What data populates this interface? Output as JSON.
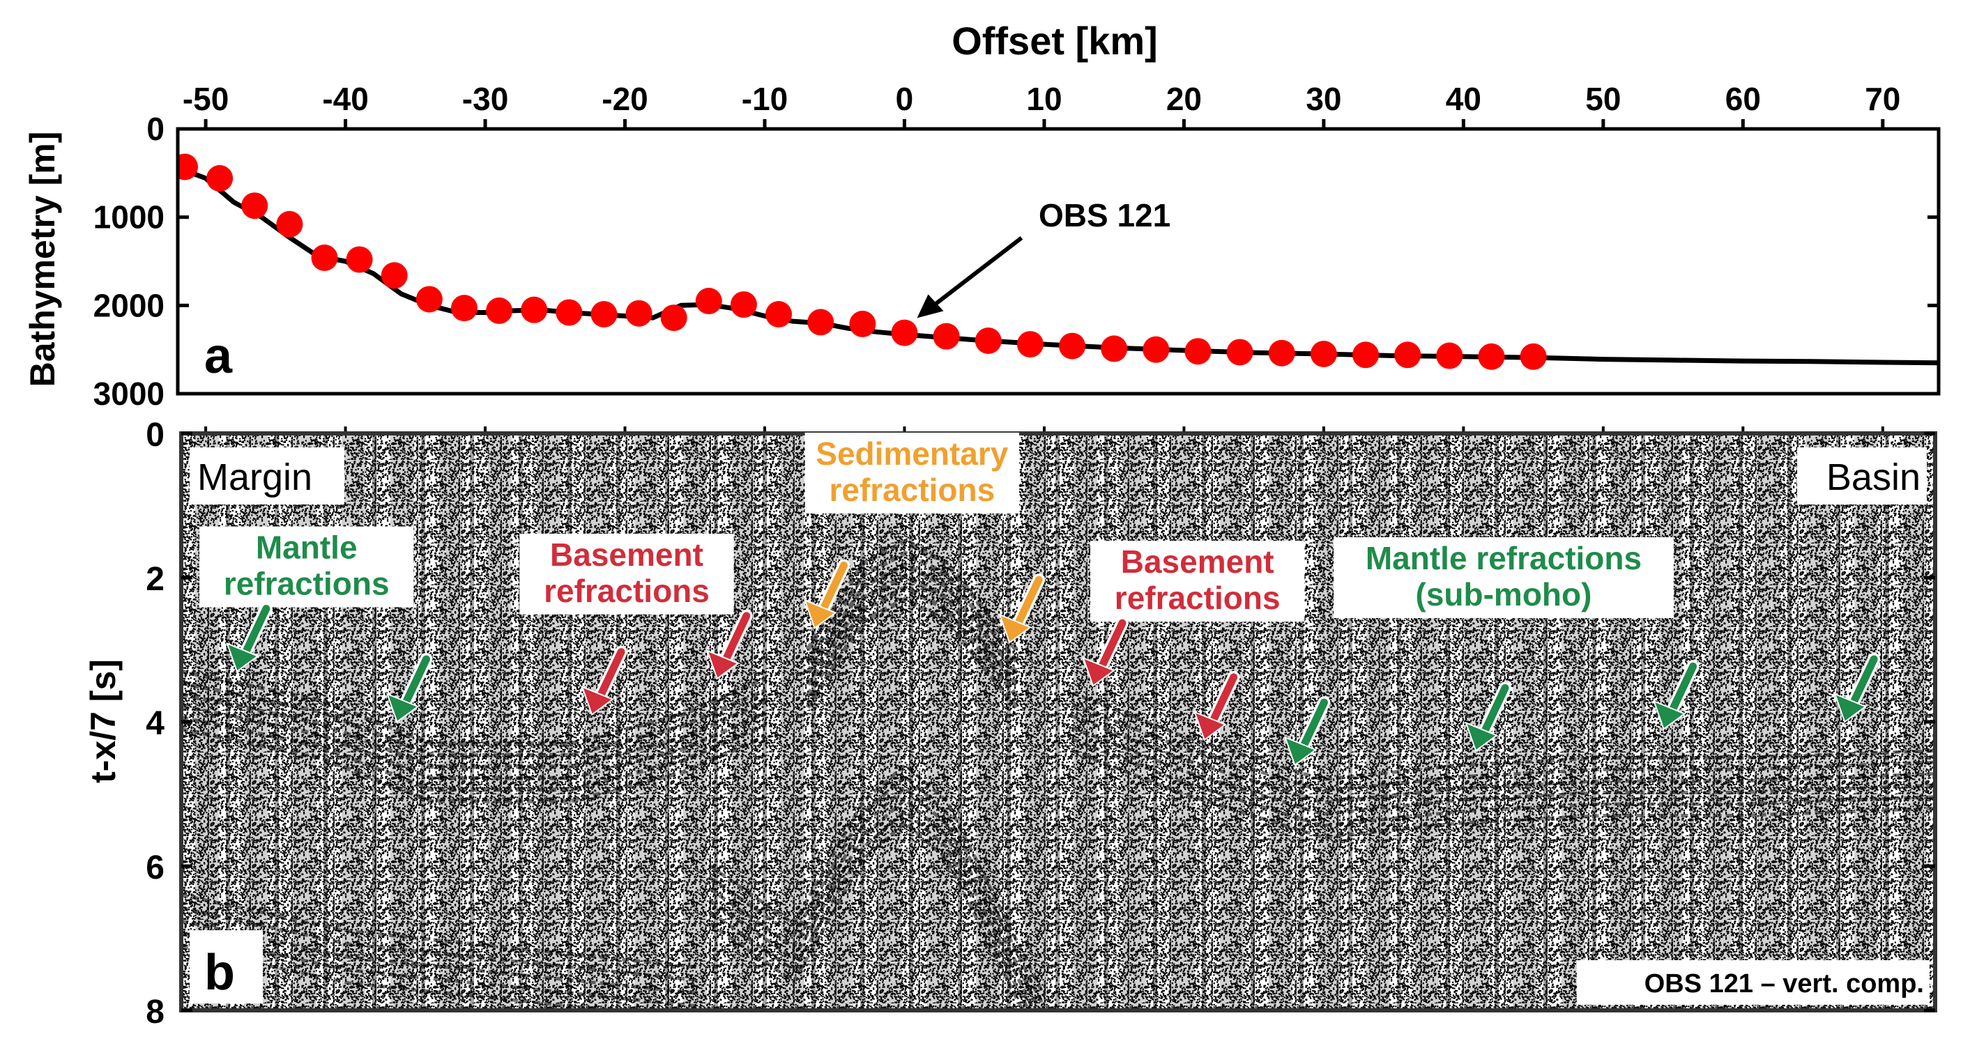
{
  "chart_data": [
    {
      "type": "line",
      "panel_label": "a",
      "title": "Offset [km]",
      "xlabel": "Offset [km]",
      "ylabel": "Bathymetry [m]",
      "xlim": [
        -52,
        74
      ],
      "ylim": [
        0,
        3000
      ],
      "y_inverted": true,
      "xticks": [
        -50,
        -40,
        -30,
        -20,
        -10,
        0,
        10,
        20,
        30,
        40,
        50,
        60,
        70
      ],
      "xtick_labels": [
        "-50",
        "-40",
        "-30",
        "-20",
        "-10",
        "0",
        "10",
        "20",
        "30",
        "40",
        "50",
        "60",
        "70"
      ],
      "yticks": [
        0,
        1000,
        2000,
        3000
      ],
      "ytick_labels": [
        "0",
        "1000",
        "2000",
        "3000"
      ],
      "series": [
        {
          "name": "bathymetry profile",
          "color": "#000000",
          "x": [
            -52,
            -50,
            -48,
            -46,
            -44,
            -42,
            -40,
            -38,
            -36,
            -34,
            -32,
            -30,
            -28,
            -26,
            -24,
            -22,
            -20,
            -18,
            -16,
            -14,
            -12,
            -10,
            -8,
            -6,
            -4,
            -2,
            0,
            5,
            10,
            15,
            20,
            25,
            30,
            35,
            40,
            45,
            50,
            55,
            60,
            65,
            70,
            74
          ],
          "values": [
            440,
            560,
            830,
            1000,
            1230,
            1440,
            1500,
            1640,
            1870,
            2000,
            2080,
            2080,
            2060,
            2050,
            2080,
            2100,
            2120,
            2140,
            2000,
            1990,
            2040,
            2120,
            2180,
            2200,
            2260,
            2300,
            2330,
            2390,
            2440,
            2480,
            2510,
            2535,
            2550,
            2570,
            2580,
            2590,
            2610,
            2620,
            2630,
            2635,
            2645,
            2650
          ]
        },
        {
          "name": "OBS locations",
          "color": "#ff0000",
          "marker": "circle",
          "x": [
            -51.5,
            -49,
            -46.5,
            -44,
            -41.5,
            -39,
            -36.5,
            -34,
            -31.5,
            -29,
            -26.5,
            -24,
            -21.5,
            -19,
            -16.5,
            -14,
            -11.5,
            -9,
            -6,
            -3,
            0,
            3,
            6,
            9,
            12,
            15,
            18,
            21,
            24,
            27,
            30,
            33,
            36,
            39,
            42,
            45
          ],
          "values": [
            430,
            560,
            870,
            1080,
            1460,
            1480,
            1660,
            1930,
            2030,
            2060,
            2050,
            2080,
            2100,
            2090,
            2140,
            1950,
            1990,
            2100,
            2190,
            2210,
            2310,
            2350,
            2400,
            2440,
            2460,
            2490,
            2500,
            2520,
            2530,
            2540,
            2550,
            2560,
            2560,
            2570,
            2580,
            2580
          ]
        }
      ],
      "annotations": [
        {
          "text": "OBS 121",
          "x": 0,
          "y": 2300,
          "type": "arrow"
        }
      ]
    },
    {
      "type": "heatmap",
      "description_kind": "seismic record section",
      "panel_label": "b",
      "xlabel": "Offset [km]",
      "ylabel": "t-x/7 [s]",
      "xlim": [
        -52,
        74
      ],
      "ylim": [
        0,
        8
      ],
      "y_inverted": true,
      "yticks": [
        0,
        2,
        4,
        6,
        8
      ],
      "ytick_labels": [
        "0",
        "2",
        "4",
        "6",
        "8"
      ],
      "corner_labels": {
        "left": "Margin",
        "right": "Basin",
        "bottom_right": "OBS 121 – vert. comp."
      },
      "annotations": [
        {
          "lines": [
            "Mantle",
            "refractions"
          ],
          "color": "#1e8c4a",
          "x": -43,
          "t": 1.85,
          "arrows": [
            [
              -48,
              3.3
            ],
            [
              -36.5,
              4.0
            ]
          ]
        },
        {
          "lines": [
            "Basement",
            "refractions"
          ],
          "color": "#d22d3a",
          "x": -20,
          "t": 1.95,
          "arrows": [
            [
              -22.5,
              3.9
            ],
            [
              -13.5,
              3.4
            ]
          ]
        },
        {
          "lines": [
            "Sedimentary",
            "refractions"
          ],
          "color": "#f0a030",
          "x": 0.5,
          "t": 0.55,
          "arrows": [
            [
              -6.5,
              2.7
            ],
            [
              7.5,
              2.9
            ]
          ]
        },
        {
          "lines": [
            "Basement",
            "refractions"
          ],
          "color": "#d22d3a",
          "x": 21,
          "t": 2.05,
          "arrows": [
            [
              13.5,
              3.5
            ],
            [
              21.5,
              4.25
            ]
          ]
        },
        {
          "lines": [
            "Mantle refractions",
            "(sub-moho)"
          ],
          "color": "#1e8c4a",
          "x": 43,
          "t": 2.0,
          "arrows": [
            [
              28,
              4.6
            ],
            [
              41,
              4.4
            ],
            [
              54.5,
              4.1
            ],
            [
              67.5,
              4.0
            ]
          ]
        }
      ]
    }
  ]
}
